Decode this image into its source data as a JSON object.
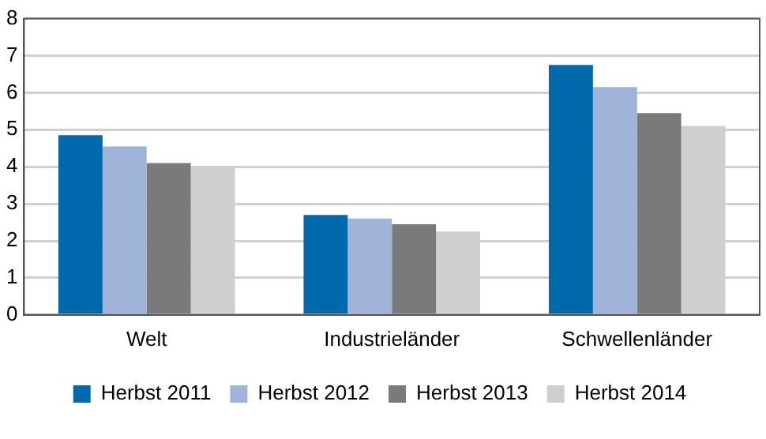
{
  "chart_data": {
    "type": "bar",
    "categories": [
      "Welt",
      "Industrieländer",
      "Schwellenländer"
    ],
    "series": [
      {
        "name": "Herbst 2011",
        "color": "#0069ac",
        "values": [
          4.85,
          2.7,
          6.75
        ]
      },
      {
        "name": "Herbst 2012",
        "color": "#a0b4da",
        "values": [
          4.55,
          2.6,
          6.15
        ]
      },
      {
        "name": "Herbst 2013",
        "color": "#7a7a7c",
        "values": [
          4.1,
          2.45,
          5.45
        ]
      },
      {
        "name": "Herbst 2014",
        "color": "#cfcfd1",
        "values": [
          4.0,
          2.25,
          5.1
        ]
      }
    ],
    "ylim": [
      0,
      8
    ],
    "yticks": [
      0,
      1,
      2,
      3,
      4,
      5,
      6,
      7,
      8
    ],
    "grid": "y",
    "legend": "bottom"
  }
}
